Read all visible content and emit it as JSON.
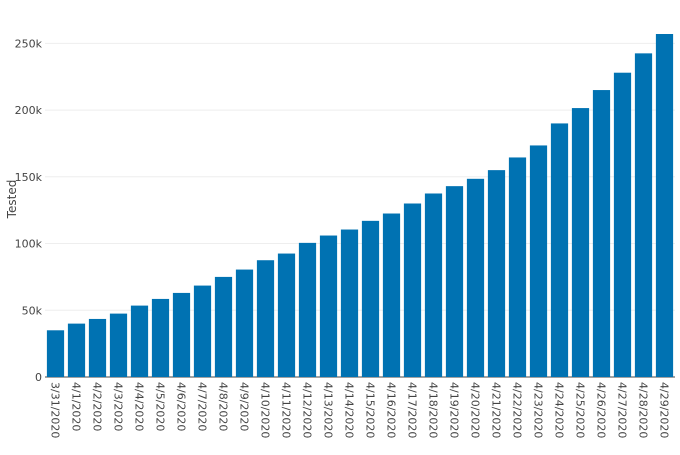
{
  "chart_data": {
    "type": "bar",
    "ylabel": "Tested",
    "xlabel": "",
    "ylim": [
      0,
      260000
    ],
    "yticks": [
      0,
      50000,
      100000,
      150000,
      200000,
      250000
    ],
    "ytick_labels": [
      "0",
      "50k",
      "100k",
      "150k",
      "200k",
      "250k"
    ],
    "grid": "horizontal",
    "bar_color": "#0072b2",
    "categories": [
      "3/31/2020",
      "4/1/2020",
      "4/2/2020",
      "4/3/2020",
      "4/4/2020",
      "4/5/2020",
      "4/6/2020",
      "4/7/2020",
      "4/8/2020",
      "4/9/2020",
      "4/10/2020",
      "4/11/2020",
      "4/12/2020",
      "4/13/2020",
      "4/14/2020",
      "4/15/2020",
      "4/16/2020",
      "4/17/2020",
      "4/18/2020",
      "4/19/2020",
      "4/20/2020",
      "4/21/2020",
      "4/22/2020",
      "4/23/2020",
      "4/24/2020",
      "4/25/2020",
      "4/26/2020",
      "4/27/2020",
      "4/28/2020",
      "4/29/2020"
    ],
    "values": [
      35000,
      40000,
      43500,
      47500,
      53500,
      58500,
      63000,
      68500,
      75000,
      80500,
      87500,
      92500,
      100500,
      106000,
      110500,
      117000,
      122500,
      130000,
      137500,
      143000,
      148500,
      155000,
      164500,
      173500,
      190000,
      201500,
      215000,
      228000,
      242500,
      257000
    ]
  }
}
